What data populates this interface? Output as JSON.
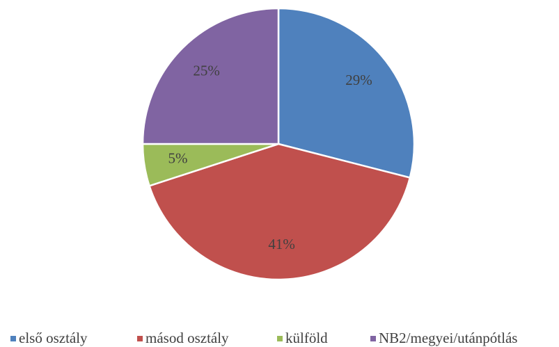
{
  "chart_data": {
    "type": "pie",
    "categories": [
      "első osztály",
      "másod osztály",
      "külföld",
      "NB2/megyei/utánpótlás"
    ],
    "values": [
      29,
      41,
      5,
      25
    ],
    "value_labels": [
      "29%",
      "41%",
      "5%",
      "25%"
    ],
    "colors": [
      "#4f81bd",
      "#c0504d",
      "#9bbb59",
      "#8064a2"
    ],
    "legend": "bottom"
  }
}
